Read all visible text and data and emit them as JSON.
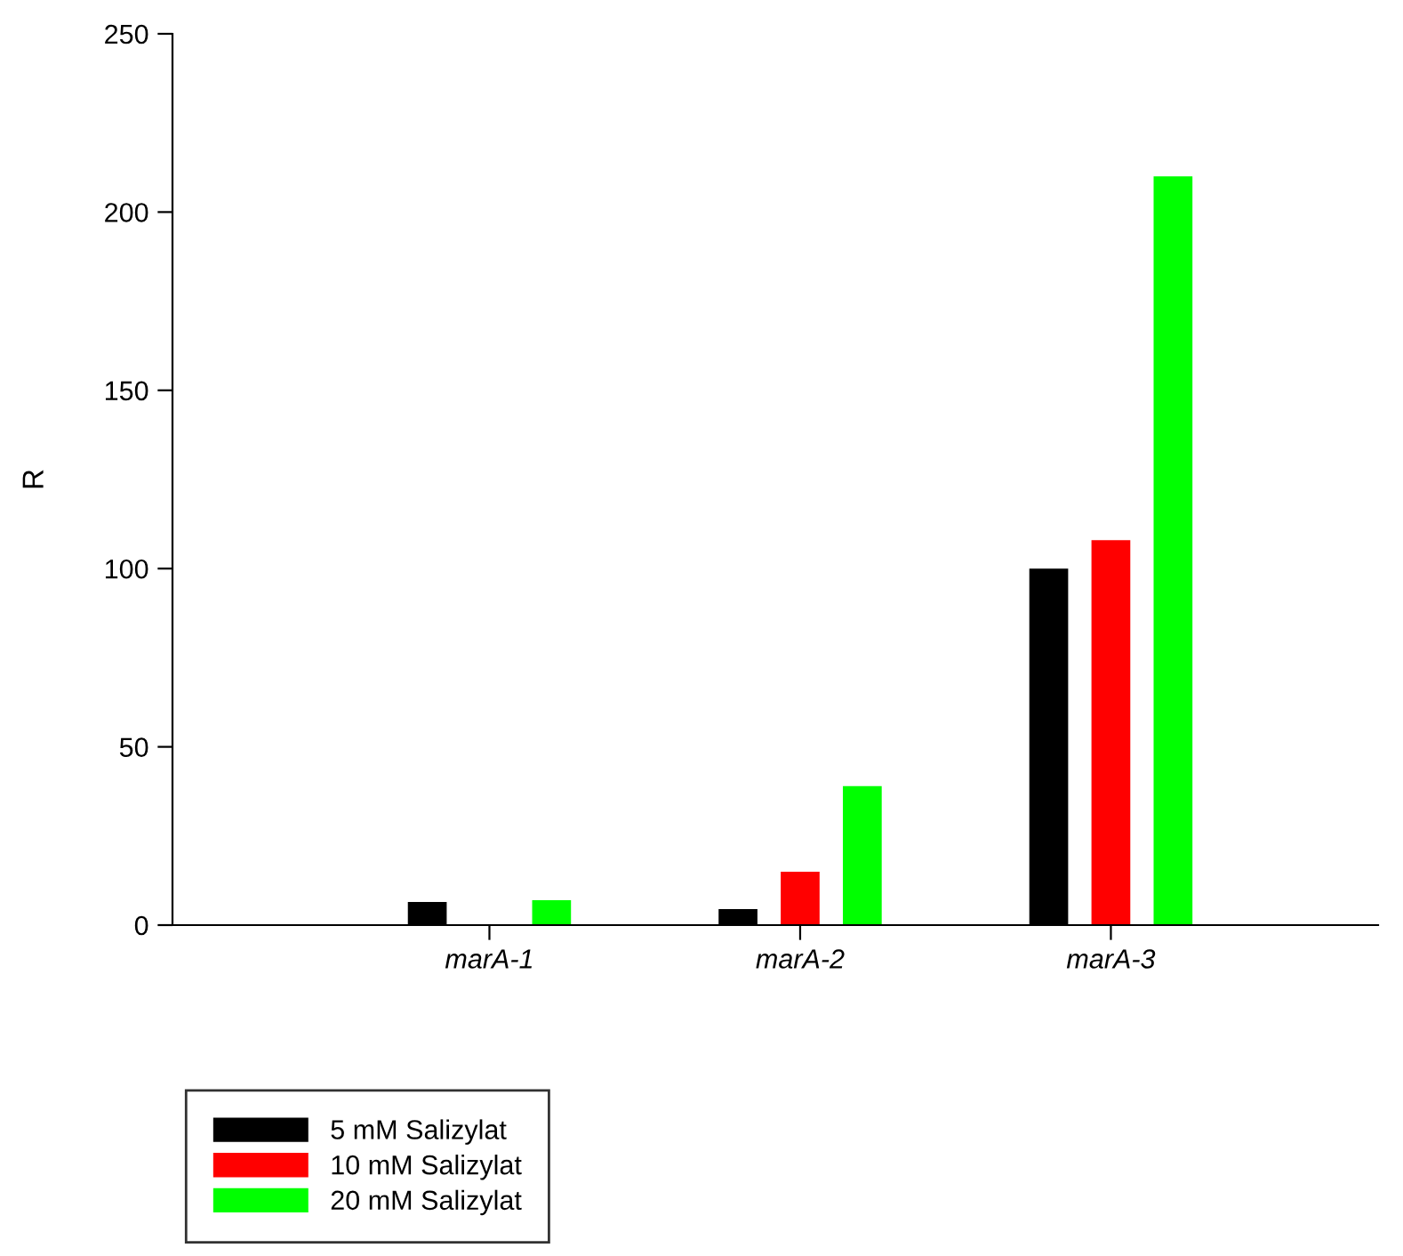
{
  "chart_data": {
    "type": "bar",
    "ylabel": "R",
    "categories": [
      "marA-1",
      "marA-2",
      "marA-3"
    ],
    "series": [
      {
        "name": "5 mM Salizylat",
        "color": "#000000",
        "values": [
          6.5,
          4.5,
          100
        ]
      },
      {
        "name": "10 mM Salizylat",
        "color": "#ff0000",
        "values": [
          null,
          15,
          108
        ]
      },
      {
        "name": "20 mM Salizylat",
        "color": "#00ff00",
        "values": [
          7,
          39,
          210
        ]
      }
    ],
    "ylim": [
      0,
      250
    ],
    "yticks": [
      0,
      50,
      100,
      150,
      200,
      250
    ],
    "grid": false,
    "legend": "bottom left"
  }
}
